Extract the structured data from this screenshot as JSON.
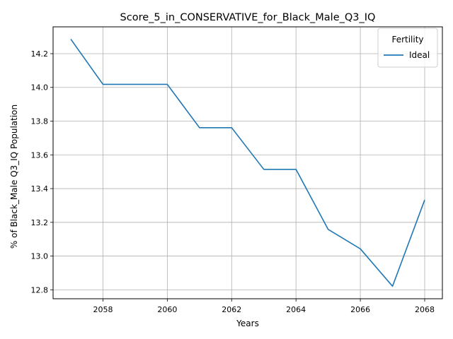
{
  "chart_data": {
    "type": "line",
    "title": "Score_5_in_CONSERVATIVE_for_Black_Male_Q3_IQ",
    "xlabel": "Years",
    "ylabel": "% of Black_Male Q3_IQ Population",
    "x": [
      2057,
      2058,
      2059,
      2060,
      2061,
      2062,
      2063,
      2064,
      2065,
      2066,
      2067,
      2068
    ],
    "series": [
      {
        "name": "Ideal",
        "color": "#1f77b4",
        "values": [
          14.286,
          14.018,
          14.018,
          14.018,
          13.761,
          13.761,
          13.514,
          13.514,
          13.158,
          13.043,
          12.821,
          13.333
        ]
      }
    ],
    "xlim": [
      2056.45,
      2068.55
    ],
    "ylim": [
      12.747,
      14.359
    ],
    "xticks": [
      2058,
      2060,
      2062,
      2064,
      2066,
      2068
    ],
    "yticks": [
      12.8,
      13.0,
      13.2,
      13.4,
      13.6,
      13.8,
      14.0,
      14.2
    ],
    "ytick_labels": [
      "12.8",
      "13.0",
      "13.2",
      "13.4",
      "13.6",
      "13.8",
      "14.0",
      "14.2"
    ],
    "grid": true,
    "legend": {
      "title": "Fertility",
      "placement": "top-right"
    }
  }
}
